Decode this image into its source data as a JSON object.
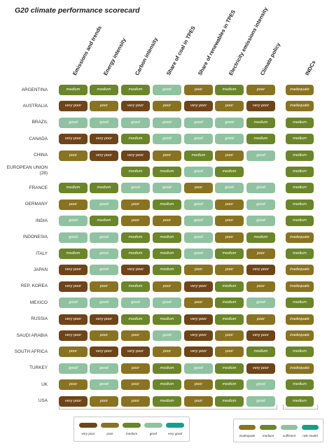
{
  "chart_data": {
    "type": "table",
    "title": "G20 climate performance scorecard",
    "columns": [
      "Emissions and trends",
      "Energy intensity",
      "Carbon intensity",
      "Share of coal in TPES",
      "Share of renewables in TPES",
      "Electricity emissions intensity",
      "Climate policy"
    ],
    "indc_column": "INDCs",
    "rows": [
      {
        "country": "ARGENTINA",
        "ratings": [
          "medium",
          "medium",
          "medium",
          "good",
          "poor",
          "medium",
          "poor"
        ],
        "indc": "inadequate"
      },
      {
        "country": "AUSTRALIA",
        "ratings": [
          "very poor",
          "poor",
          "very poor",
          "poor",
          "very poor",
          "poor",
          "very poor"
        ],
        "indc": "inadequate"
      },
      {
        "country": "BRAZIL",
        "ratings": [
          "good",
          "good",
          "good",
          "good",
          "good",
          "good",
          "medium"
        ],
        "indc": "medium"
      },
      {
        "country": "CANADA",
        "ratings": [
          "very poor",
          "very poor",
          "medium",
          "good",
          "good",
          "good",
          "medium"
        ],
        "indc": "medium"
      },
      {
        "country": "CHINA",
        "ratings": [
          "poor",
          "very poor",
          "very poor",
          "poor",
          "medium",
          "poor",
          "good"
        ],
        "indc": "medium"
      },
      {
        "country": "EUROPEAN UNION (28)",
        "ratings": [
          "",
          "",
          "medium",
          "medium",
          "good",
          "medium",
          ""
        ],
        "indc": "medium"
      },
      {
        "country": "FRANCE",
        "ratings": [
          "medium",
          "medium",
          "good",
          "good",
          "poor",
          "good",
          "good"
        ],
        "indc": "medium"
      },
      {
        "country": "GERMANY",
        "ratings": [
          "poor",
          "good",
          "poor",
          "medium",
          "good",
          "poor",
          "good"
        ],
        "indc": "medium"
      },
      {
        "country": "INDIA",
        "ratings": [
          "good",
          "medium",
          "poor",
          "poor",
          "good",
          "poor",
          "good"
        ],
        "indc": "medium"
      },
      {
        "country": "INDONESIA",
        "ratings": [
          "good",
          "good",
          "medium",
          "medium",
          "good",
          "poor",
          "medium"
        ],
        "indc": "inadequate"
      },
      {
        "country": "ITALY",
        "ratings": [
          "medium",
          "good",
          "medium",
          "medium",
          "good",
          "medium",
          "poor"
        ],
        "indc": "medium"
      },
      {
        "country": "JAPAN",
        "ratings": [
          "very poor",
          "good",
          "very poor",
          "medium",
          "poor",
          "poor",
          "very poor"
        ],
        "indc": "inadequate"
      },
      {
        "country": "REP. KOREA",
        "ratings": [
          "very poor",
          "poor",
          "medium",
          "poor",
          "very poor",
          "medium",
          "poor"
        ],
        "indc": "inadequate"
      },
      {
        "country": "MEXICO",
        "ratings": [
          "good",
          "good",
          "good",
          "good",
          "poor",
          "medium",
          "good"
        ],
        "indc": "medium"
      },
      {
        "country": "RUSSIA",
        "ratings": [
          "very poor",
          "very poor",
          "medium",
          "medium",
          "very poor",
          "medium",
          "poor"
        ],
        "indc": "inadequate"
      },
      {
        "country": "SAUDI ARABIA",
        "ratings": [
          "very poor",
          "poor",
          "poor",
          "good",
          "very poor",
          "poor",
          "very poor"
        ],
        "indc": "inadequate"
      },
      {
        "country": "SOUTH AFRICA",
        "ratings": [
          "poor",
          "very poor",
          "very poor",
          "poor",
          "very poor",
          "poor",
          "medium"
        ],
        "indc": "medium"
      },
      {
        "country": "TURKEY",
        "ratings": [
          "good",
          "good",
          "poor",
          "medium",
          "good",
          "medium",
          "very poor"
        ],
        "indc": "inadequate"
      },
      {
        "country": "UK",
        "ratings": [
          "poor",
          "good",
          "poor",
          "medium",
          "poor",
          "medium",
          "good"
        ],
        "indc": "medium"
      },
      {
        "country": "USA",
        "ratings": [
          "very poor",
          "poor",
          "poor",
          "medium",
          "poor",
          "medium",
          "good"
        ],
        "indc": "medium"
      }
    ],
    "legend_ratings": [
      "very poor",
      "poor",
      "medium",
      "good",
      "very good"
    ],
    "legend_indc": [
      "inadequate",
      "medium",
      "sufficient",
      "role model"
    ]
  },
  "colors": {
    "very poor": "#6e4418",
    "poor": "#8a7320",
    "medium": "#6a8628",
    "good": "#8fc2a0",
    "very good": "#12a089",
    "inadequate": "#8a7320",
    "sufficient": "#8fc2a0",
    "role model": "#12a089"
  }
}
